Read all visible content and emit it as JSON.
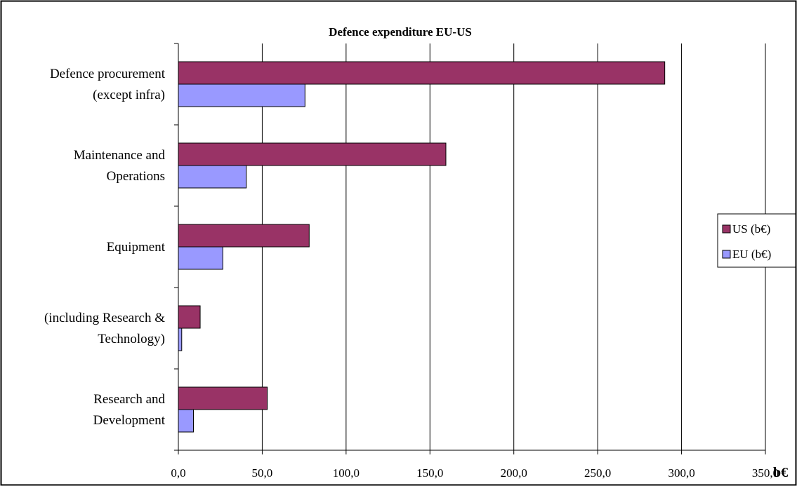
{
  "chart_data": {
    "type": "bar",
    "orientation": "horizontal",
    "title": "Defence expenditure EU-US",
    "xlabel": "b€",
    "ylabel": "",
    "xlim": [
      0,
      350
    ],
    "x_ticks": [
      0,
      50,
      100,
      150,
      200,
      250,
      300,
      350
    ],
    "x_tick_labels": [
      "0,0",
      "50,0",
      "100,0",
      "150,0",
      "200,0",
      "250,0",
      "300,0",
      "350,0"
    ],
    "grid": "vertical",
    "legend_position": "right",
    "categories": [
      [
        "Defence procurement",
        "(except infra)"
      ],
      [
        "Maintenance and",
        "Operations"
      ],
      [
        "Equipment"
      ],
      [
        "(including Research &",
        "Technology)"
      ],
      [
        "Research and",
        "Development"
      ]
    ],
    "series": [
      {
        "name": "US (b€)",
        "color": "#993366",
        "values": [
          290,
          159.5,
          78,
          13,
          53
        ]
      },
      {
        "name": "EU (b€)",
        "color": "#9999ff",
        "values": [
          75.5,
          40.5,
          26.5,
          2,
          9
        ]
      }
    ]
  }
}
